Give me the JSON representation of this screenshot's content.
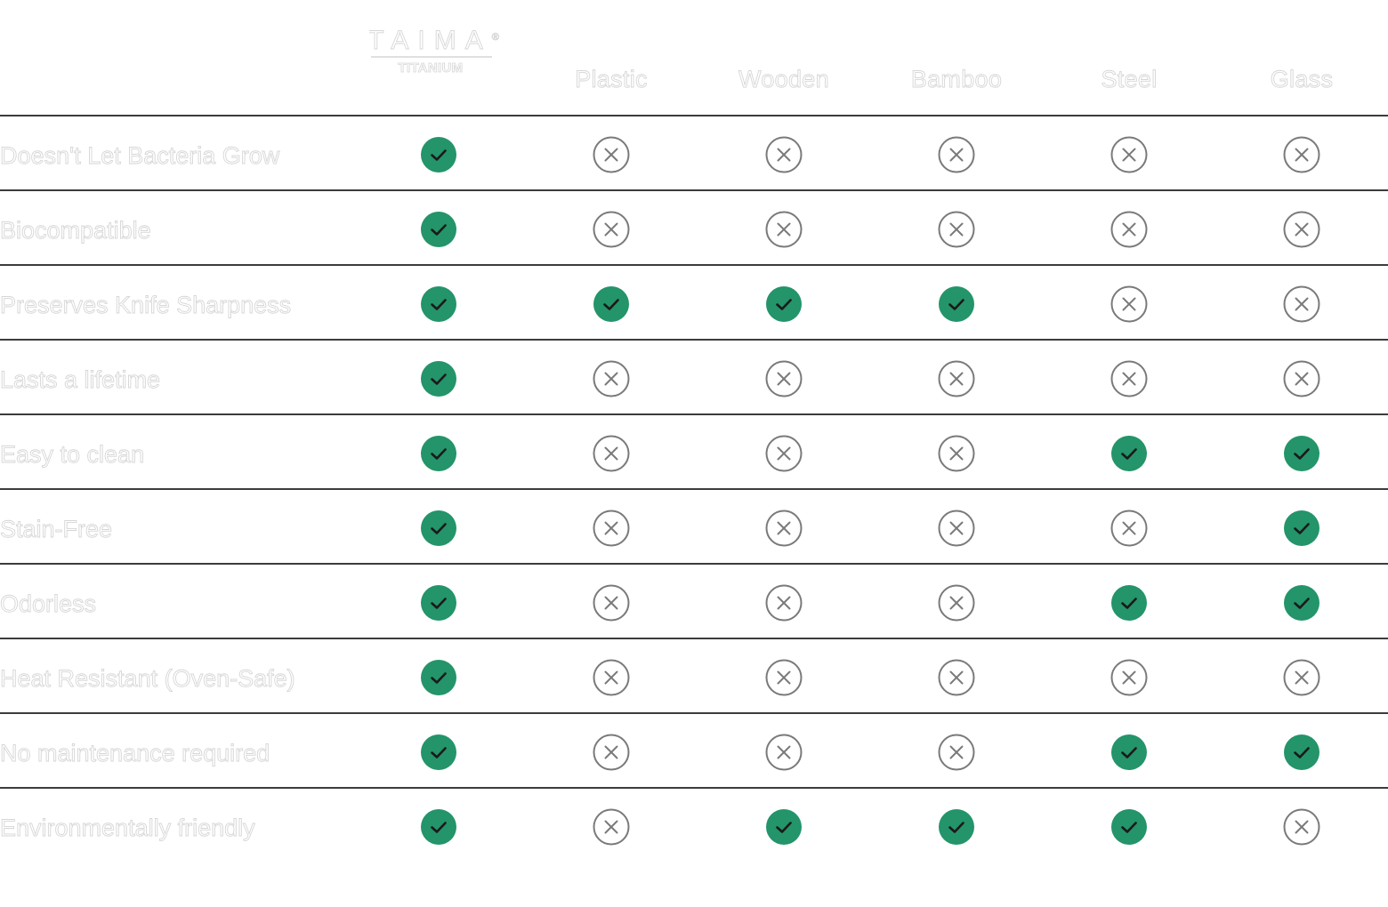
{
  "brand": {
    "logo_text": "TAIMA",
    "logo_sub": "TITANIUM",
    "registered": "®"
  },
  "columns": [
    "TAIMA TITANIUM",
    "Plastic",
    "Wooden",
    "Bamboo",
    "Steel",
    "Glass"
  ],
  "rows": [
    {
      "feature": "Doesn't Let Bacteria Grow",
      "values": [
        true,
        false,
        false,
        false,
        false,
        false
      ]
    },
    {
      "feature": "Biocompatible",
      "values": [
        true,
        false,
        false,
        false,
        false,
        false
      ]
    },
    {
      "feature": "Preserves Knife Sharpness",
      "values": [
        true,
        true,
        true,
        true,
        false,
        false
      ]
    },
    {
      "feature": "Lasts a lifetime",
      "values": [
        true,
        false,
        false,
        false,
        false,
        false
      ]
    },
    {
      "feature": "Easy to clean",
      "values": [
        true,
        false,
        false,
        false,
        true,
        true
      ]
    },
    {
      "feature": "Stain-Free",
      "values": [
        true,
        false,
        false,
        false,
        false,
        true
      ]
    },
    {
      "feature": "Odorless",
      "values": [
        true,
        false,
        false,
        false,
        true,
        true
      ]
    },
    {
      "feature": "Heat Resistant (Oven-Safe)",
      "values": [
        true,
        false,
        false,
        false,
        false,
        false
      ]
    },
    {
      "feature": "No maintenance required",
      "values": [
        true,
        false,
        false,
        false,
        true,
        true
      ]
    },
    {
      "feature": "Environmentally friendly",
      "values": [
        true,
        false,
        true,
        true,
        true,
        false
      ]
    }
  ],
  "icons": {
    "yes": "check-circle-icon",
    "no": "x-circle-icon"
  },
  "colors": {
    "check_fill": "#24946a",
    "check_mark": "#1a1a1a",
    "x_stroke": "#7a7a7a",
    "divider": "#3c3c3c",
    "text_outline": "#d6d6d6"
  }
}
